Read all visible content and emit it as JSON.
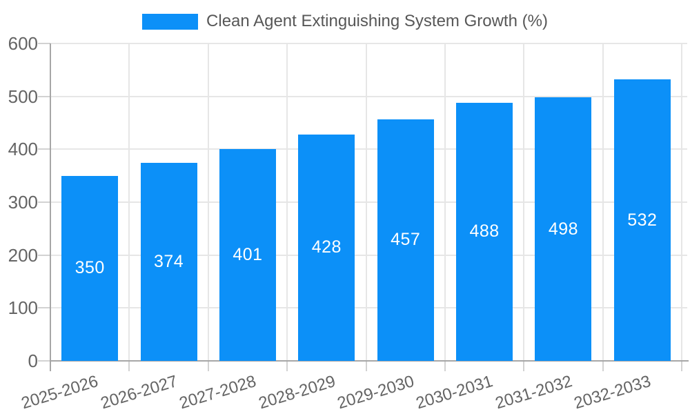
{
  "chart_data": {
    "type": "bar",
    "title": "Clean Agent Extinguishing System Growth (%)",
    "categories": [
      "2025-2026",
      "2026-2027",
      "2027-2028",
      "2028-2029",
      "2029-2030",
      "2030-2031",
      "2031-2032",
      "2032-2033"
    ],
    "values": [
      350,
      374,
      401,
      428,
      457,
      488,
      498,
      532
    ],
    "xlabel": "",
    "ylabel": "",
    "ylim": [
      0,
      600
    ],
    "yticks": [
      0,
      100,
      200,
      300,
      400,
      500,
      600
    ],
    "grid": true,
    "legend_position": "top-center",
    "bar_label_position": "inside-center",
    "x_tick_rotation_deg": -17,
    "colors": {
      "bar": "#0C90F8",
      "bar_label": "#FFFFFF",
      "grid": "#E6E6E6",
      "tick": "#D2D2D2",
      "axis": "#A6A6A6",
      "axis_text": "#646464",
      "legend_text": "#575757",
      "background": "#FFFFFF"
    }
  }
}
